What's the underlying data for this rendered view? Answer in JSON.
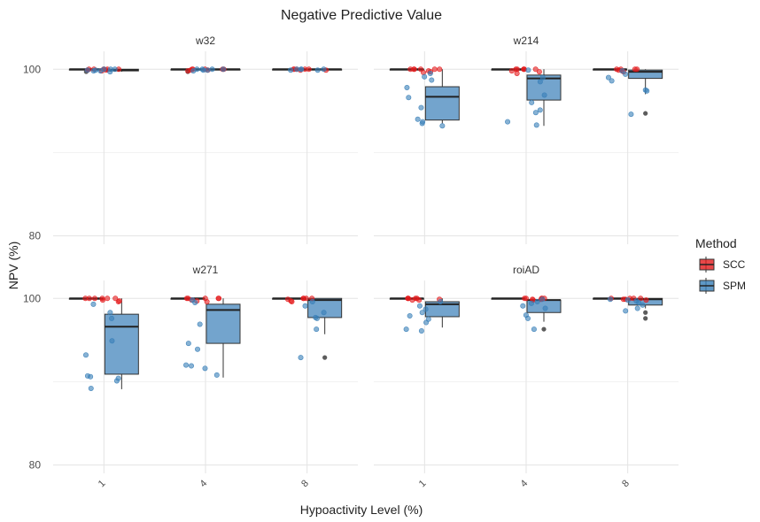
{
  "chart_data": {
    "type": "box",
    "title": "Negative Predictive Value",
    "xlabel": "Hypoactivity Level (%)",
    "ylabel": "NPV (%)",
    "categories": [
      "1",
      "4",
      "8"
    ],
    "ylim": [
      79,
      103
    ],
    "y_ticks": [
      "80",
      "100"
    ],
    "grid": true,
    "legend": {
      "title": "Method",
      "position": "right",
      "entries": [
        {
          "name": "SCC",
          "color": "#e41a1c"
        },
        {
          "name": "SPM",
          "color": "#377eb8"
        }
      ]
    },
    "panels": [
      {
        "name": "w32",
        "boxes": {
          "SCC": [
            {
              "category": "1",
              "min": 100,
              "q1": 100,
              "median": 100,
              "q3": 100,
              "max": 100,
              "outliers": [
                99.7
              ]
            },
            {
              "category": "4",
              "min": 100,
              "q1": 100,
              "median": 100,
              "q3": 100,
              "max": 100,
              "outliers": [
                99.7
              ]
            },
            {
              "category": "8",
              "min": 100,
              "q1": 100,
              "median": 100,
              "q3": 100,
              "max": 100,
              "outliers": []
            }
          ],
          "SPM": [
            {
              "category": "1",
              "min": 99.7,
              "q1": 99.8,
              "median": 99.9,
              "q3": 100,
              "max": 100,
              "outliers": []
            },
            {
              "category": "4",
              "min": 99.8,
              "q1": 99.9,
              "median": 100,
              "q3": 100,
              "max": 100,
              "outliers": []
            },
            {
              "category": "8",
              "min": 99.8,
              "q1": 99.9,
              "median": 100,
              "q3": 100,
              "max": 100,
              "outliers": []
            }
          ]
        },
        "points": {
          "SCC": [
            [
              100,
              99.9,
              100,
              100,
              99.8,
              100,
              99.9,
              100,
              100
            ],
            [
              100,
              99.9,
              100,
              100,
              99.8,
              100,
              100,
              99.9
            ],
            [
              100,
              99.9,
              100,
              100,
              100,
              99.9,
              100
            ]
          ],
          "SPM": [
            [
              99.8,
              99.9,
              100,
              99.7,
              99.9,
              100,
              99.8,
              100
            ],
            [
              99.9,
              100,
              99.8,
              100,
              99.9,
              100,
              100
            ],
            [
              99.9,
              100,
              100,
              99.9,
              100,
              100
            ]
          ]
        }
      },
      {
        "name": "w214",
        "boxes": {
          "SCC": [
            {
              "category": "1",
              "min": 100,
              "q1": 100,
              "median": 100,
              "q3": 100,
              "max": 100,
              "outliers": []
            },
            {
              "category": "4",
              "min": 100,
              "q1": 100,
              "median": 100,
              "q3": 100,
              "max": 100,
              "outliers": []
            },
            {
              "category": "8",
              "min": 100,
              "q1": 100,
              "median": 100,
              "q3": 100,
              "max": 100,
              "outliers": []
            }
          ],
          "SPM": [
            {
              "category": "1",
              "min": 93.5,
              "q1": 93.9,
              "median": 96.7,
              "q3": 97.9,
              "max": 100,
              "outliers": []
            },
            {
              "category": "4",
              "min": 93.2,
              "q1": 96.3,
              "median": 98.9,
              "q3": 99.3,
              "max": 100,
              "outliers": []
            },
            {
              "category": "8",
              "min": 97.0,
              "q1": 98.9,
              "median": 99.7,
              "q3": 99.9,
              "max": 100,
              "outliers": [
                94.7
              ]
            }
          ]
        },
        "points": {
          "SCC": [
            [
              100,
              99.6,
              100,
              99.8,
              100,
              100,
              99.7,
              100,
              100
            ],
            [
              100,
              99.7,
              100,
              100,
              99.5,
              100,
              100,
              99.8,
              100
            ],
            [
              100,
              99.8,
              100,
              99.7,
              100,
              100,
              99.9
            ]
          ],
          "SPM": [
            [
              93.7,
              96.6,
              97.8,
              95.4,
              98.7,
              99.5,
              93.2,
              94.0,
              93.5,
              99.1
            ],
            [
              93.3,
              95.1,
              96.9,
              99.0,
              98.5,
              94.8,
              96.0,
              99.9,
              93.7
            ],
            [
              97.5,
              99.0,
              99.8,
              94.6,
              99.4,
              98.6,
              97.4
            ]
          ]
        }
      },
      {
        "name": "w271",
        "boxes": {
          "SCC": [
            {
              "category": "1",
              "min": 100,
              "q1": 100,
              "median": 100,
              "q3": 100,
              "max": 100,
              "outliers": []
            },
            {
              "category": "4",
              "min": 100,
              "q1": 100,
              "median": 100,
              "q3": 100,
              "max": 100,
              "outliers": []
            },
            {
              "category": "8",
              "min": 99.7,
              "q1": 99.9,
              "median": 100,
              "q3": 100,
              "max": 100,
              "outliers": []
            }
          ],
          "SPM": [
            {
              "category": "1",
              "min": 89.1,
              "q1": 90.9,
              "median": 96.6,
              "q3": 98.1,
              "max": 100,
              "outliers": []
            },
            {
              "category": "4",
              "min": 90.5,
              "q1": 94.6,
              "median": 98.6,
              "q3": 99.3,
              "max": 100,
              "outliers": []
            },
            {
              "category": "8",
              "min": 95.7,
              "q1": 97.7,
              "median": 99.8,
              "q3": 100,
              "max": 100,
              "outliers": [
                92.9
              ]
            }
          ]
        },
        "points": {
          "SCC": [
            [
              100,
              99.6,
              100,
              99.8,
              100,
              100,
              99.7,
              100,
              100
            ],
            [
              100,
              99.6,
              100,
              100,
              99.8,
              100,
              100,
              99.7
            ],
            [
              100,
              99.7,
              100,
              99.6,
              100,
              100,
              99.9
            ]
          ],
          "SPM": [
            [
              90.6,
              94.9,
              97.6,
              98.3,
              90.4,
              99.3,
              90.1,
              89.2,
              93.2,
              90.7
            ],
            [
              91.6,
              94.6,
              96.9,
              99.5,
              93.9,
              90.8,
              91.9,
              99.8,
              92.0
            ],
            [
              97.6,
              99.1,
              96.3,
              92.9,
              98.3,
              97.7,
              99.6
            ]
          ]
        }
      },
      {
        "name": "roiAD",
        "boxes": {
          "SCC": [
            {
              "category": "1",
              "min": 100,
              "q1": 100,
              "median": 100,
              "q3": 100,
              "max": 100,
              "outliers": []
            },
            {
              "category": "4",
              "min": 100,
              "q1": 100,
              "median": 100,
              "q3": 100,
              "max": 100,
              "outliers": []
            },
            {
              "category": "8",
              "min": 100,
              "q1": 100,
              "median": 100,
              "q3": 100,
              "max": 100,
              "outliers": []
            }
          ],
          "SPM": [
            {
              "category": "1",
              "min": 96.5,
              "q1": 97.8,
              "median": 99.3,
              "q3": 99.6,
              "max": 100,
              "outliers": []
            },
            {
              "category": "4",
              "min": 97.2,
              "q1": 98.3,
              "median": 99.8,
              "q3": 99.8,
              "max": 100,
              "outliers": [
                96.3
              ]
            },
            {
              "category": "8",
              "min": 98.8,
              "q1": 99.2,
              "median": 99.9,
              "q3": 100,
              "max": 100,
              "outliers": [
                98.3,
                97.6
              ]
            }
          ]
        },
        "points": {
          "SCC": [
            [
              100,
              99.8,
              100,
              99.9,
              100,
              100,
              99.8,
              100
            ],
            [
              100,
              99.9,
              100,
              100,
              99.8,
              100,
              100,
              99.9
            ],
            [
              100,
              99.9,
              100,
              99.8,
              100,
              100,
              99.9
            ]
          ],
          "SPM": [
            [
              96.3,
              97.5,
              98.3,
              99.1,
              97.1,
              99.6,
              98.7,
              96.1,
              97.9
            ],
            [
              99.1,
              98.0,
              96.3,
              99.6,
              99.9,
              97.6,
              98.8,
              99.4
            ],
            [
              98.8,
              99.5,
              99.8,
              98.5,
              99.2,
              99.7,
              99.9
            ]
          ]
        }
      }
    ]
  }
}
